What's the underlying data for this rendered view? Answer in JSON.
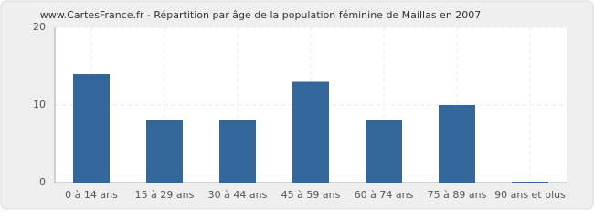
{
  "chart_data": {
    "type": "bar",
    "title": "www.CartesFrance.fr - Répartition par âge de la population féminine de Maillas en 2007",
    "categories": [
      "0 à 14 ans",
      "15 à 29 ans",
      "30 à 44 ans",
      "45 à 59 ans",
      "60 à 74 ans",
      "75 à 89 ans",
      "90 ans et plus"
    ],
    "values": [
      14,
      8,
      8,
      13,
      8,
      10,
      0
    ],
    "color": "#336699",
    "ylim": [
      0,
      20
    ],
    "yticks": [
      0,
      10,
      20
    ],
    "grid": true
  }
}
